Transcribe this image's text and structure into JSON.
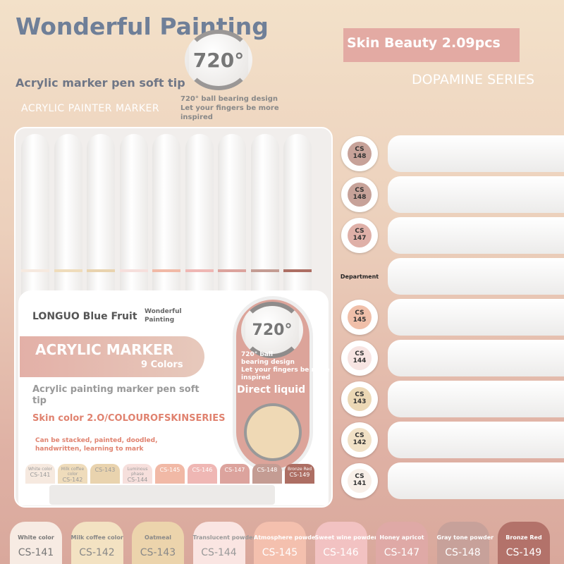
{
  "title": "Wonderful Painting",
  "subtitle": "Acrylic marker pen soft tip",
  "tagline": "ACRYLIC PAINTER MARKER",
  "ball": {
    "degree": "720°",
    "desc1": "720° ball bearing design",
    "desc2": "Let your fingers be more inspired"
  },
  "badge": "Skin Beauty 2.09pcs",
  "series": "DOPAMINE SERIES",
  "box": {
    "brand": "LONGUO Blue Fruit",
    "wp": "Wonderful Painting",
    "am": "ACRYLIC MARKER",
    "colors": "9 Colors",
    "desc": "Acrylic painting marker pen soft tip",
    "skin": "Skin color 2.O/COLOUROFSKINSERIES",
    "can": "Can be stacked, painted, doodled, handwritten, learning to mark",
    "degree": "720°",
    "bb": "720° ball bearing design",
    "inspire": "Let your fingers be more inspired",
    "direct": "Direct liquid"
  },
  "box_swatches": [
    {
      "name": "White color",
      "code": "CS-141",
      "color": "#f6e9df"
    },
    {
      "name": "Milk coffee color",
      "code": "CS-142",
      "color": "#efdcbb"
    },
    {
      "name": "",
      "code": "CS-143",
      "color": "#e9d3ae"
    },
    {
      "name": "Luminous phase",
      "code": "CS-144",
      "color": "#f6dfdc"
    },
    {
      "name": "",
      "code": "CS-145",
      "color": "#f1b9a6"
    },
    {
      "name": "",
      "code": "CS-146",
      "color": "#efb7b4"
    },
    {
      "name": "",
      "code": "CS-147",
      "color": "#dca39d"
    },
    {
      "name": "",
      "code": "CS-148",
      "color": "#c49c93"
    },
    {
      "name": "Bronze Red",
      "code": "CS-149",
      "color": "#ad6e63"
    }
  ],
  "right_pens": [
    {
      "label": "CS 148",
      "color": "#c7a299"
    },
    {
      "label": "CS 148",
      "color": "#c7a299"
    },
    {
      "label": "CS 147",
      "color": "#dfb0a8"
    },
    {
      "label": "Department",
      "color": ""
    },
    {
      "label": "CS 145",
      "color": "#f0bfa9"
    },
    {
      "label": "CS 144",
      "color": "#f7e4e2"
    },
    {
      "label": "CS 143",
      "color": "#ecd8b5"
    },
    {
      "label": "CS 142",
      "color": "#f1e1c6"
    },
    {
      "label": "CS 141",
      "color": "#f8efe8"
    }
  ],
  "bottom_swatches": [
    {
      "name": "White color",
      "code": "CS-141",
      "color": "#f7ebe3",
      "text": "#777"
    },
    {
      "name": "Milk coffee color",
      "code": "CS-142",
      "color": "#f3e2c2",
      "text": "#888"
    },
    {
      "name": "Oatmeal",
      "code": "CS-143",
      "color": "#ecd4ac",
      "text": "#888"
    },
    {
      "name": "Translucent powder",
      "code": "CS-144",
      "color": "#fae5e2",
      "text": "#999"
    },
    {
      "name": "Atmosphere powder",
      "code": "CS-145",
      "color": "#f4c0ae",
      "text": "#fff"
    },
    {
      "name": "Sweet wine powder",
      "code": "CS-146",
      "color": "#f2c2c2",
      "text": "#fff"
    },
    {
      "name": "Honey apricot",
      "code": "CS-147",
      "color": "#dfa9a6",
      "text": "#fff"
    },
    {
      "name": "Gray tone powder",
      "code": "CS-148",
      "color": "#c7a19a",
      "text": "#fff"
    },
    {
      "name": "Bronze Red",
      "code": "CS-149",
      "color": "#b3726a",
      "text": "#fff"
    }
  ]
}
